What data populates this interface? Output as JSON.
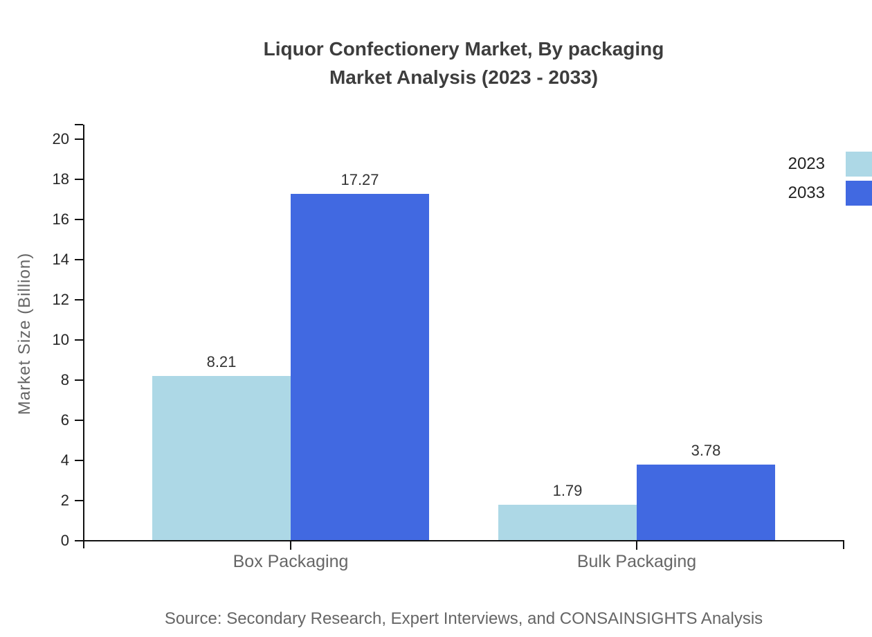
{
  "title": {
    "line1": "Liquor Confectionery Market, By packaging",
    "line2": "Market Analysis (2023 - 2033)"
  },
  "y_axis_label": "Market Size (Billion)",
  "source_note": "Source: Secondary Research, Expert Interviews, and CONSAINSIGHTS Analysis",
  "legend": {
    "items": [
      {
        "label": "2023",
        "color": "#ADD8E6"
      },
      {
        "label": "2033",
        "color": "#4169E1"
      }
    ]
  },
  "colors": {
    "axis": "#111111",
    "title_text": "#3d3d3d",
    "tick_text": "#262626",
    "value_text": "#333333",
    "muted_text": "#666666"
  },
  "chart_data": {
    "type": "bar",
    "title": "Liquor Confectionery Market, By packaging — Market Analysis (2023 - 2033)",
    "categories": [
      "Box Packaging",
      "Bulk Packaging"
    ],
    "series": [
      {
        "name": "2023",
        "color": "#ADD8E6",
        "values": [
          8.21,
          1.79
        ]
      },
      {
        "name": "2033",
        "color": "#4169E1",
        "values": [
          17.27,
          3.78
        ]
      }
    ],
    "xlabel": "",
    "ylabel": "Market Size (Billion)",
    "ylim": [
      0,
      20
    ],
    "ytick_step": 2,
    "grid": false,
    "legend_position": "top-right",
    "value_labels": true,
    "source": "Source: Secondary Research, Expert Interviews, and CONSAINSIGHTS Analysis"
  }
}
